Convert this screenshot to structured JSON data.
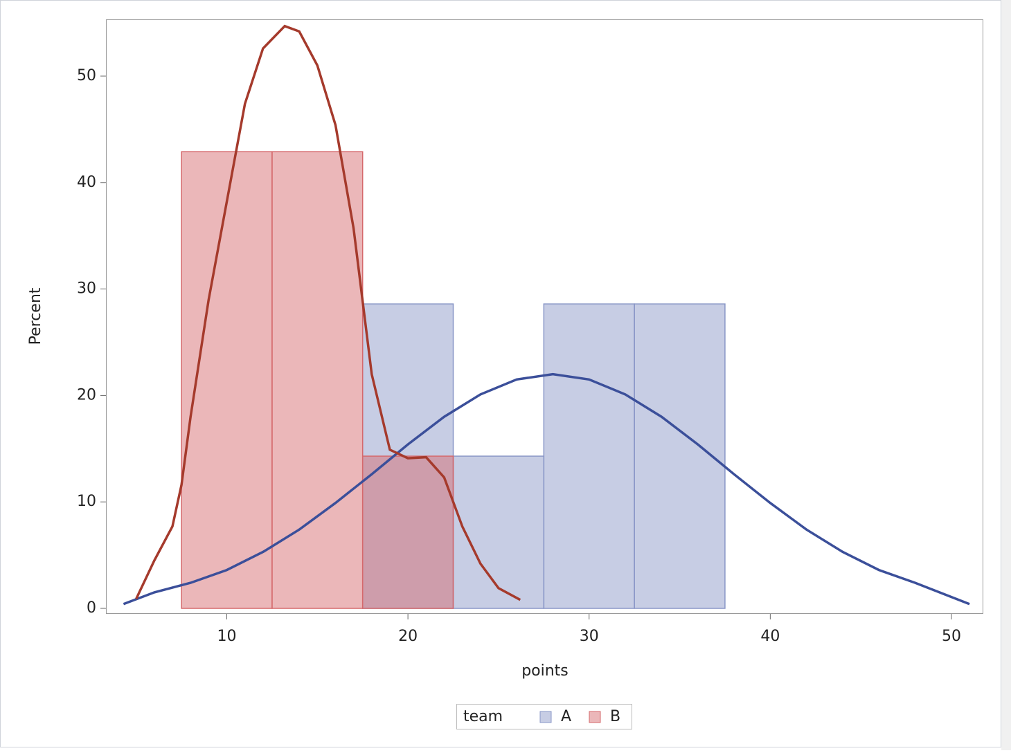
{
  "chart_data": {
    "type": "histogram",
    "x_label": "points",
    "y_label": "Percent",
    "legend_title": "team",
    "bins": [
      7.5,
      12.5,
      17.5,
      22.5,
      27.5,
      32.5,
      37.5
    ],
    "series": [
      {
        "name": "A",
        "color": "#8a97c7",
        "line_color": "#3b4f9a",
        "values": [
          0,
          0,
          28.6,
          14.3,
          28.6,
          28.6
        ],
        "curve_x": [
          4.3,
          6,
          8,
          10,
          12,
          14,
          16,
          18,
          20,
          22,
          24,
          26,
          28,
          30,
          32,
          34,
          36,
          38,
          40,
          42,
          44,
          46,
          48,
          51
        ],
        "curve": [
          0.4,
          1.5,
          2.4,
          3.6,
          5.3,
          7.4,
          9.9,
          12.6,
          15.4,
          18.0,
          20.1,
          21.5,
          22,
          21.5,
          20.1,
          18.0,
          15.4,
          12.6,
          9.9,
          7.4,
          5.3,
          3.6,
          2.4,
          0.4
        ]
      },
      {
        "name": "B",
        "color": "#d5696c",
        "line_color": "#a53a2c",
        "values": [
          42.9,
          42.9,
          14.3,
          0,
          0,
          0
        ],
        "curve_x": [
          5,
          6,
          7,
          7.5,
          8,
          9,
          10.5,
          11,
          12,
          13.2,
          14,
          15,
          16,
          17,
          18,
          19,
          20,
          21,
          22,
          23,
          24,
          25,
          26.2
        ],
        "curve": [
          0.9,
          4.5,
          7.7,
          11.6,
          18,
          29,
          42.8,
          47.4,
          52.6,
          54.7,
          54.2,
          51,
          45.4,
          35.7,
          22,
          14.9,
          14.1,
          14.2,
          12.3,
          7.7,
          4.2,
          1.9,
          0.8
        ]
      }
    ],
    "xlim": [
      3.33,
      51.76
    ],
    "xticks": [
      10,
      20,
      30,
      40,
      50
    ],
    "ylim": [
      -0.52,
      55.33
    ],
    "yticks": [
      0,
      10,
      20,
      30,
      40,
      50
    ]
  }
}
